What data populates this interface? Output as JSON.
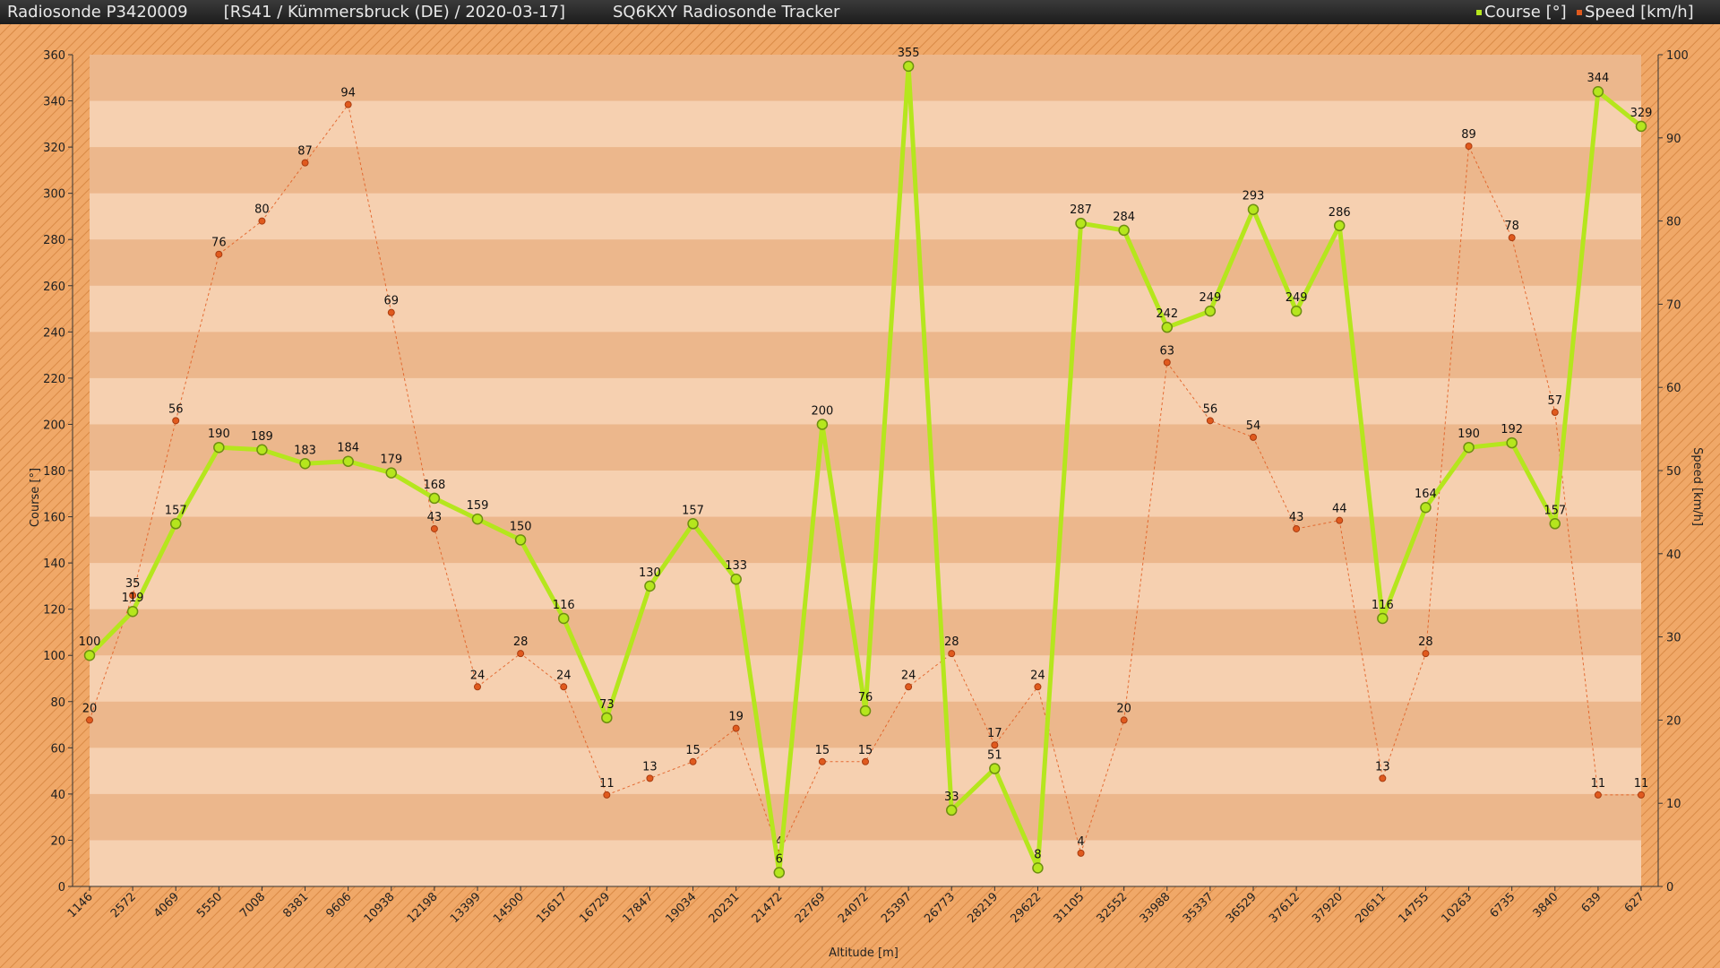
{
  "header": {
    "left": "Radiosonde P3420009       [RS41 / Kümmersbruck (DE) / 2020-03-17]",
    "center": "SQ6KXY Radiosonde Tracker",
    "legend_course": "Course [°]",
    "legend_speed": "Speed [km/h]"
  },
  "colors": {
    "course": "#b5e61d",
    "speed": "#e05a1e",
    "plot_light": "#f6d0b0",
    "plot_dark": "#ecb78c",
    "frame": "#f0a868"
  },
  "chart_data": {
    "type": "line",
    "xlabel": "Altitude [m]",
    "ylabel": "Course [°]",
    "y2label": "Speed [km/h]",
    "ylim": [
      0,
      360
    ],
    "y2lim": [
      0,
      100
    ],
    "yticks": [
      0,
      20,
      40,
      60,
      80,
      100,
      120,
      140,
      160,
      180,
      200,
      220,
      240,
      260,
      280,
      300,
      320,
      340,
      360
    ],
    "y2ticks": [
      0,
      10,
      20,
      30,
      40,
      50,
      60,
      70,
      80,
      90,
      100
    ],
    "categories": [
      "1146",
      "2572",
      "4069",
      "5550",
      "7008",
      "8381",
      "9606",
      "10938",
      "12198",
      "13399",
      "14500",
      "15617",
      "16729",
      "17847",
      "19034",
      "20231",
      "21472",
      "22769",
      "24072",
      "25397",
      "26773",
      "28219",
      "29622",
      "31105",
      "32552",
      "33988",
      "35337",
      "36529",
      "37612",
      "37920",
      "20611",
      "14755",
      "10263",
      "6735",
      "3840",
      "639",
      "627"
    ],
    "series": [
      {
        "name": "Course [°]",
        "axis": "left",
        "values": [
          100,
          119,
          157,
          190,
          189,
          183,
          184,
          179,
          168,
          159,
          150,
          116,
          73,
          130,
          157,
          133,
          6,
          200,
          76,
          355,
          33,
          51,
          8,
          287,
          284,
          242,
          249,
          293,
          249,
          286,
          116,
          164,
          190,
          192,
          157,
          344,
          329
        ]
      },
      {
        "name": "Speed [km/h]",
        "axis": "right",
        "values": [
          20,
          35,
          56,
          76,
          80,
          87,
          94,
          69,
          43,
          24,
          28,
          24,
          11,
          13,
          15,
          19,
          4,
          15,
          15,
          24,
          28,
          17,
          24,
          4,
          20,
          63,
          56,
          54,
          43,
          44,
          13,
          28,
          89,
          78,
          57,
          11,
          11
        ]
      }
    ]
  }
}
